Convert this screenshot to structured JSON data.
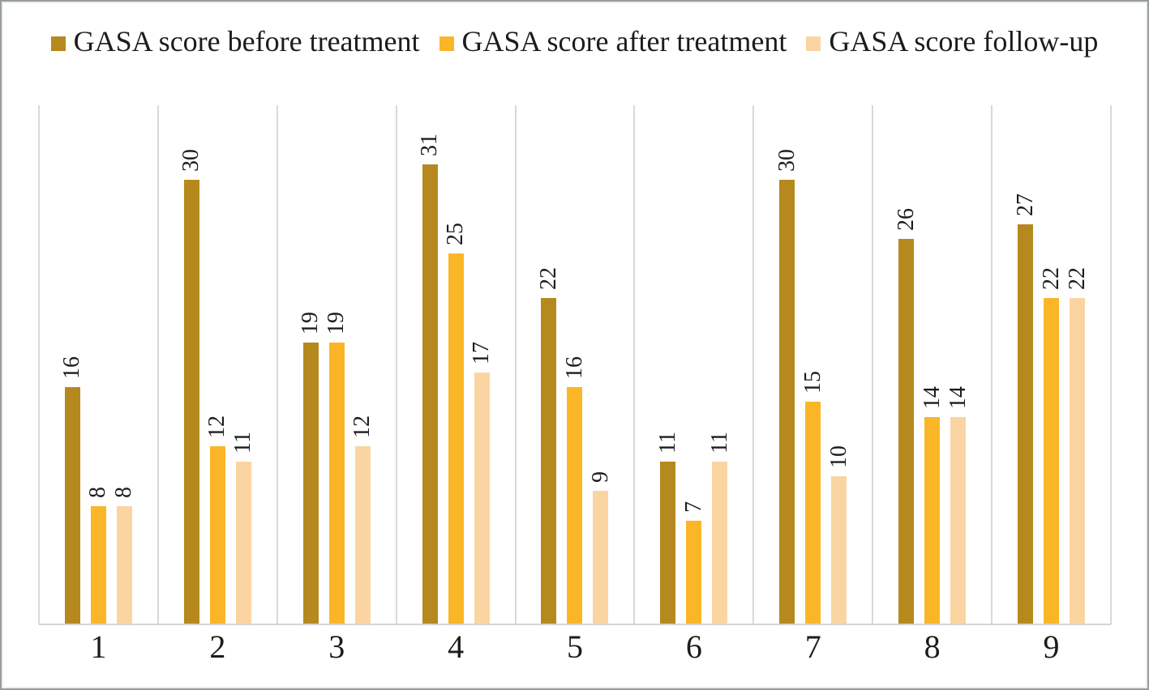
{
  "chart_data": {
    "type": "bar",
    "title": "",
    "xlabel": "",
    "ylabel": "",
    "categories": [
      "1",
      "2",
      "3",
      "4",
      "5",
      "6",
      "7",
      "8",
      "9"
    ],
    "series": [
      {
        "name": "GASA score before treatment",
        "color": "#b6891e",
        "values": [
          16,
          30,
          19,
          31,
          22,
          11,
          30,
          26,
          27
        ]
      },
      {
        "name": "GASA score after treatment",
        "color": "#fbb628",
        "values": [
          8,
          12,
          19,
          25,
          16,
          7,
          15,
          14,
          22
        ]
      },
      {
        "name": "GASA score follow-up",
        "color": "#fad5a2",
        "values": [
          8,
          11,
          12,
          17,
          9,
          11,
          10,
          14,
          22
        ]
      }
    ],
    "ylim": [
      0,
      35
    ],
    "y_axis_visible": false,
    "grid": "vertical-category-separators-only",
    "gridline_color": "#d9d9d9",
    "legend_position": "top-center",
    "data_labels": "rotated-90-above-bars",
    "data_label_color": "#1c1c1c"
  }
}
